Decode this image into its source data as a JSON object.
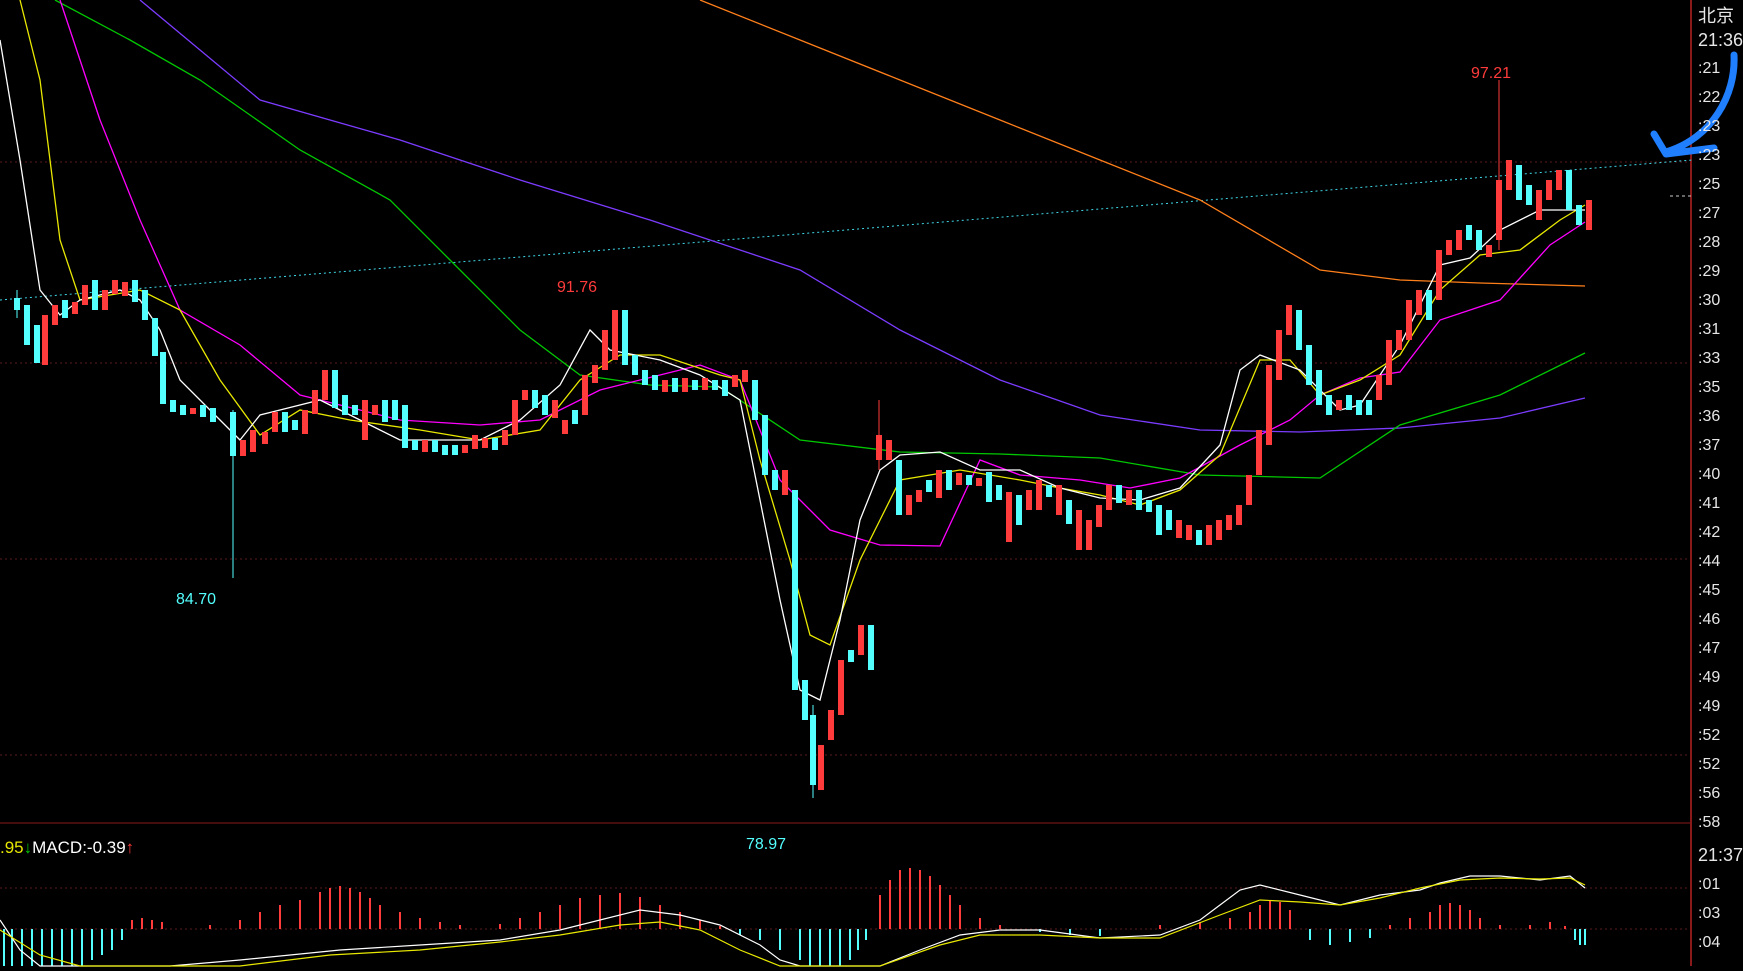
{
  "price_panel": {
    "annotations": {
      "high_left": "91.76",
      "low_left": "84.70",
      "low_center": "78.97",
      "high_right": "97.21"
    }
  },
  "right_panel": {
    "city": "北京",
    "time_top": "21:36",
    "time_bottom": "21:37",
    "ticks_top": [
      ":21",
      ":22",
      ":23",
      ":23",
      ":25",
      ":27",
      ":28",
      ":29",
      ":30",
      ":31",
      ":33",
      ":35",
      ":36",
      ":37",
      ":40",
      ":41",
      ":42",
      ":44",
      ":45",
      ":46",
      ":47",
      ":49",
      ":49",
      ":52",
      ":52",
      ":56",
      ":58"
    ],
    "ticks_bottom": [
      ":01",
      ":03",
      ":04"
    ]
  },
  "macd_panel": {
    "value_prev": ".95",
    "arrow_prev": "↓",
    "label": "MACD:",
    "value": "-0.39",
    "arrow": "↑"
  },
  "colors": {
    "background": "#000000",
    "up_candle": "#ff3b3b",
    "down_candle": "#54ffff",
    "ma5": "#ffffff",
    "ma10": "#e8e800",
    "ma20": "#ff00ff",
    "ma60": "#00c800",
    "ma120": "#7b3cff",
    "ma250": "#ff7f1a",
    "annotation_arrow": "#1f7fff"
  }
}
